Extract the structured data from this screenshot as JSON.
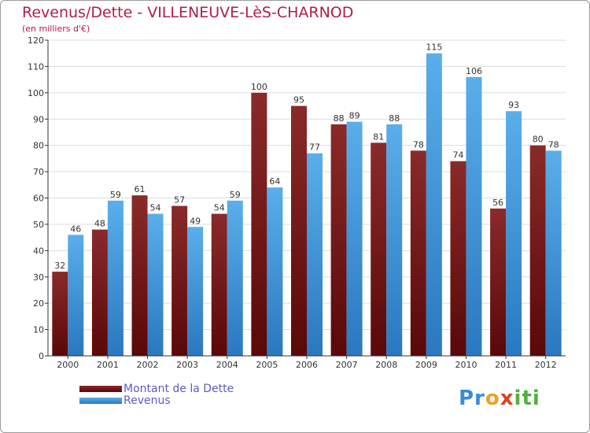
{
  "header": {
    "title": "Revenus/Dette - VILLENEUVE-LèS-CHARNOD",
    "subtitle": "(en milliers d'€)"
  },
  "colors": {
    "dette": "#7a1a1a",
    "revenus": "#4a9fe0",
    "title": "#b01e46"
  },
  "chart_data": {
    "type": "bar",
    "title": "Revenus/Dette - VILLENEUVE-LèS-CHARNOD",
    "subtitle": "(en milliers d'€)",
    "xlabel": "",
    "ylabel": "",
    "categories": [
      "2000",
      "2001",
      "2002",
      "2003",
      "2004",
      "2005",
      "2006",
      "2007",
      "2008",
      "2009",
      "2010",
      "2011",
      "2012"
    ],
    "series": [
      {
        "name": "Montant de la Dette",
        "values": [
          32,
          48,
          61,
          57,
          54,
          100,
          95,
          88,
          81,
          78,
          74,
          56,
          80
        ]
      },
      {
        "name": "Revenus",
        "values": [
          46,
          59,
          54,
          49,
          59,
          64,
          77,
          89,
          88,
          115,
          106,
          93,
          78
        ]
      }
    ],
    "ylim": [
      0,
      120
    ],
    "yticks": [
      0,
      10,
      20,
      30,
      40,
      50,
      60,
      70,
      80,
      90,
      100,
      110,
      120
    ],
    "grid": true,
    "legend_position": "bottom-left"
  },
  "legend": {
    "items": [
      {
        "label": "Montant de la Dette"
      },
      {
        "label": "Revenus"
      }
    ]
  },
  "logo": {
    "parts": [
      "Pr",
      "o",
      "x",
      "iti"
    ]
  }
}
